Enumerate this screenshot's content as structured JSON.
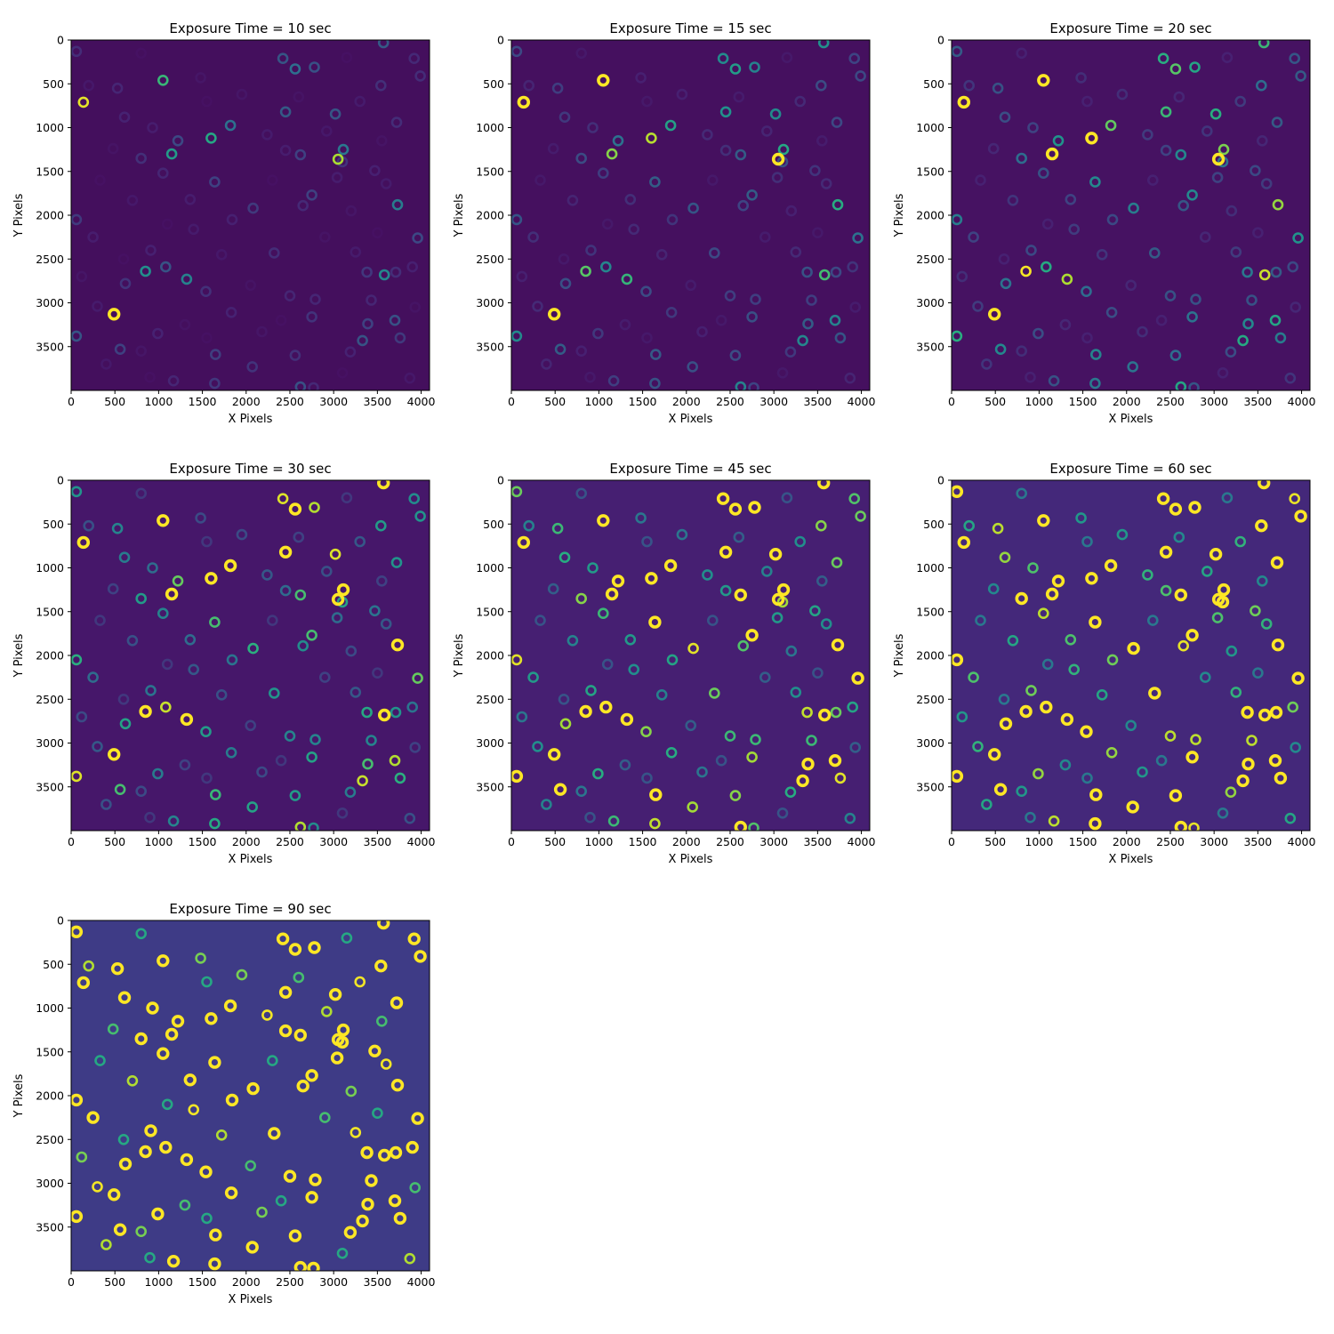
{
  "figure": {
    "colormap": "viridis",
    "background_color": "#ffffff",
    "ring_color_bright": "#fde725"
  },
  "chart_data": [
    {
      "type": "heatmap",
      "title": "Exposure Time = 10 sec",
      "exposure_sec": 10,
      "xlabel": "X Pixels",
      "ylabel": "Y Pixels",
      "xlim": [
        0,
        4096
      ],
      "ylim": [
        4000,
        0
      ],
      "xticks": [
        0,
        500,
        1000,
        1500,
        2000,
        2500,
        3000,
        3500,
        4000
      ],
      "yticks": [
        0,
        500,
        1000,
        1500,
        2000,
        2500,
        3000,
        3500
      ],
      "xtick_labels": [
        "0",
        "500",
        "1000",
        "1500",
        "2000",
        "2500",
        "3000",
        "3500",
        "4000"
      ],
      "ytick_labels": [
        "0",
        "500",
        "1000",
        "1500",
        "2000",
        "2500",
        "3000",
        "3500"
      ],
      "background_color": "#440f5d"
    },
    {
      "type": "heatmap",
      "title": "Exposure Time = 15 sec",
      "exposure_sec": 15,
      "xlabel": "X Pixels",
      "ylabel": "Y Pixels",
      "xlim": [
        0,
        4096
      ],
      "ylim": [
        4000,
        0
      ],
      "xticks": [
        0,
        500,
        1000,
        1500,
        2000,
        2500,
        3000,
        3500,
        4000
      ],
      "yticks": [
        0,
        500,
        1000,
        1500,
        2000,
        2500,
        3000,
        3500
      ],
      "xtick_labels": [
        "0",
        "500",
        "1000",
        "1500",
        "2000",
        "2500",
        "3000",
        "3500",
        "4000"
      ],
      "ytick_labels": [
        "0",
        "500",
        "1000",
        "1500",
        "2000",
        "2500",
        "3000",
        "3500"
      ],
      "background_color": "#45105f"
    },
    {
      "type": "heatmap",
      "title": "Exposure Time = 20 sec",
      "exposure_sec": 20,
      "xlabel": "X Pixels",
      "ylabel": "Y Pixels",
      "xlim": [
        0,
        4096
      ],
      "ylim": [
        4000,
        0
      ],
      "xticks": [
        0,
        500,
        1000,
        1500,
        2000,
        2500,
        3000,
        3500,
        4000
      ],
      "yticks": [
        0,
        500,
        1000,
        1500,
        2000,
        2500,
        3000,
        3500
      ],
      "xtick_labels": [
        "0",
        "500",
        "1000",
        "1500",
        "2000",
        "2500",
        "3000",
        "3500",
        "4000"
      ],
      "ytick_labels": [
        "0",
        "500",
        "1000",
        "1500",
        "2000",
        "2500",
        "3000",
        "3500"
      ],
      "background_color": "#461262"
    },
    {
      "type": "heatmap",
      "title": "Exposure Time = 30 sec",
      "exposure_sec": 30,
      "xlabel": "X Pixels",
      "ylabel": "Y Pixels",
      "xlim": [
        0,
        4096
      ],
      "ylim": [
        4000,
        0
      ],
      "xticks": [
        0,
        500,
        1000,
        1500,
        2000,
        2500,
        3000,
        3500,
        4000
      ],
      "yticks": [
        0,
        500,
        1000,
        1500,
        2000,
        2500,
        3000,
        3500
      ],
      "xtick_labels": [
        "0",
        "500",
        "1000",
        "1500",
        "2000",
        "2500",
        "3000",
        "3500",
        "4000"
      ],
      "ytick_labels": [
        "0",
        "500",
        "1000",
        "1500",
        "2000",
        "2500",
        "3000",
        "3500"
      ],
      "background_color": "#46176a"
    },
    {
      "type": "heatmap",
      "title": "Exposure Time = 45 sec",
      "exposure_sec": 45,
      "xlabel": "X Pixels",
      "ylabel": "Y Pixels",
      "xlim": [
        0,
        4096
      ],
      "ylim": [
        4000,
        0
      ],
      "xticks": [
        0,
        500,
        1000,
        1500,
        2000,
        2500,
        3000,
        3500,
        4000
      ],
      "yticks": [
        0,
        500,
        1000,
        1500,
        2000,
        2500,
        3000,
        3500
      ],
      "xtick_labels": [
        "0",
        "500",
        "1000",
        "1500",
        "2000",
        "2500",
        "3000",
        "3500",
        "4000"
      ],
      "ytick_labels": [
        "0",
        "500",
        "1000",
        "1500",
        "2000",
        "2500",
        "3000",
        "3500"
      ],
      "background_color": "#461f72"
    },
    {
      "type": "heatmap",
      "title": "Exposure Time = 60 sec",
      "exposure_sec": 60,
      "xlabel": "X Pixels",
      "ylabel": "Y Pixels",
      "xlim": [
        0,
        4096
      ],
      "ylim": [
        4000,
        0
      ],
      "xticks": [
        0,
        500,
        1000,
        1500,
        2000,
        2500,
        3000,
        3500,
        4000
      ],
      "yticks": [
        0,
        500,
        1000,
        1500,
        2000,
        2500,
        3000,
        3500
      ],
      "xtick_labels": [
        "0",
        "500",
        "1000",
        "1500",
        "2000",
        "2500",
        "3000",
        "3500",
        "4000"
      ],
      "ytick_labels": [
        "0",
        "500",
        "1000",
        "1500",
        "2000",
        "2500",
        "3000",
        "3500"
      ],
      "background_color": "#44287a"
    },
    {
      "type": "heatmap",
      "title": "Exposure Time = 90 sec",
      "exposure_sec": 90,
      "xlabel": "X Pixels",
      "ylabel": "Y Pixels",
      "xlim": [
        0,
        4096
      ],
      "ylim": [
        4000,
        0
      ],
      "xticks": [
        0,
        500,
        1000,
        1500,
        2000,
        2500,
        3000,
        3500,
        4000
      ],
      "yticks": [
        0,
        500,
        1000,
        1500,
        2000,
        2500,
        3000,
        3500
      ],
      "xtick_labels": [
        "0",
        "500",
        "1000",
        "1500",
        "2000",
        "2500",
        "3000",
        "3500",
        "4000"
      ],
      "ytick_labels": [
        "0",
        "500",
        "1000",
        "1500",
        "2000",
        "2500",
        "3000",
        "3500"
      ],
      "background_color": "#3e3b86"
    }
  ],
  "ring_sources": [
    {
      "x": 140,
      "y": 710,
      "b": 0.9
    },
    {
      "x": 1050,
      "y": 460,
      "b": 0.62
    },
    {
      "x": 490,
      "y": 3130,
      "b": 1.0
    },
    {
      "x": 3050,
      "y": 1360,
      "b": 0.82
    },
    {
      "x": 1600,
      "y": 1120,
      "b": 0.55
    },
    {
      "x": 1150,
      "y": 1300,
      "b": 0.5
    },
    {
      "x": 850,
      "y": 2640,
      "b": 0.45
    },
    {
      "x": 3580,
      "y": 2680,
      "b": 0.42
    },
    {
      "x": 3730,
      "y": 1880,
      "b": 0.38
    },
    {
      "x": 1320,
      "y": 2730,
      "b": 0.4
    },
    {
      "x": 1820,
      "y": 975,
      "b": 0.34
    },
    {
      "x": 2560,
      "y": 330,
      "b": 0.33
    },
    {
      "x": 3110,
      "y": 1250,
      "b": 0.36
    },
    {
      "x": 2450,
      "y": 820,
      "b": 0.3
    },
    {
      "x": 2420,
      "y": 210,
      "b": 0.28
    },
    {
      "x": 2780,
      "y": 310,
      "b": 0.26
    },
    {
      "x": 3020,
      "y": 845,
      "b": 0.28
    },
    {
      "x": 3570,
      "y": 30,
      "b": 0.3
    },
    {
      "x": 1080,
      "y": 2590,
      "b": 0.27
    },
    {
      "x": 60,
      "y": 3380,
      "b": 0.28
    },
    {
      "x": 3700,
      "y": 3200,
      "b": 0.26
    },
    {
      "x": 3330,
      "y": 3430,
      "b": 0.27
    },
    {
      "x": 3960,
      "y": 2260,
      "b": 0.22
    },
    {
      "x": 2620,
      "y": 3960,
      "b": 0.26
    },
    {
      "x": 1640,
      "y": 1620,
      "b": 0.2
    },
    {
      "x": 1220,
      "y": 1150,
      "b": 0.22
    },
    {
      "x": 2750,
      "y": 1770,
      "b": 0.2
    },
    {
      "x": 2620,
      "y": 1310,
      "b": 0.2
    },
    {
      "x": 60,
      "y": 2050,
      "b": 0.18
    },
    {
      "x": 2080,
      "y": 1920,
      "b": 0.18
    },
    {
      "x": 560,
      "y": 3530,
      "b": 0.2
    },
    {
      "x": 3390,
      "y": 3240,
      "b": 0.2
    },
    {
      "x": 1650,
      "y": 3590,
      "b": 0.19
    },
    {
      "x": 3760,
      "y": 3400,
      "b": 0.18
    },
    {
      "x": 3380,
      "y": 2650,
      "b": 0.17
    },
    {
      "x": 620,
      "y": 2780,
      "b": 0.16
    },
    {
      "x": 1640,
      "y": 3920,
      "b": 0.17
    },
    {
      "x": 2070,
      "y": 3730,
      "b": 0.16
    },
    {
      "x": 2750,
      "y": 3160,
      "b": 0.16
    },
    {
      "x": 1540,
      "y": 2870,
      "b": 0.15
    },
    {
      "x": 800,
      "y": 1350,
      "b": 0.15
    },
    {
      "x": 3720,
      "y": 940,
      "b": 0.14
    },
    {
      "x": 3540,
      "y": 520,
      "b": 0.15
    },
    {
      "x": 3100,
      "y": 1390,
      "b": 0.16
    },
    {
      "x": 3710,
      "y": 2650,
      "b": 0.14
    },
    {
      "x": 2560,
      "y": 3600,
      "b": 0.15
    },
    {
      "x": 3920,
      "y": 210,
      "b": 0.13
    },
    {
      "x": 3990,
      "y": 410,
      "b": 0.14
    },
    {
      "x": 60,
      "y": 130,
      "b": 0.14
    },
    {
      "x": 530,
      "y": 550,
      "b": 0.12
    },
    {
      "x": 1050,
      "y": 1520,
      "b": 0.12
    },
    {
      "x": 2320,
      "y": 2430,
      "b": 0.14
    },
    {
      "x": 2790,
      "y": 2960,
      "b": 0.12
    },
    {
      "x": 2500,
      "y": 2920,
      "b": 0.12
    },
    {
      "x": 2650,
      "y": 1890,
      "b": 0.13
    },
    {
      "x": 1170,
      "y": 3890,
      "b": 0.12
    },
    {
      "x": 2770,
      "y": 3970,
      "b": 0.13
    },
    {
      "x": 3430,
      "y": 2970,
      "b": 0.12
    },
    {
      "x": 1830,
      "y": 3110,
      "b": 0.11
    },
    {
      "x": 3190,
      "y": 3560,
      "b": 0.11
    },
    {
      "x": 610,
      "y": 880,
      "b": 0.11
    },
    {
      "x": 990,
      "y": 3350,
      "b": 0.11
    },
    {
      "x": 910,
      "y": 2400,
      "b": 0.1
    },
    {
      "x": 1840,
      "y": 2050,
      "b": 0.1
    },
    {
      "x": 3470,
      "y": 1490,
      "b": 0.1
    },
    {
      "x": 3900,
      "y": 2590,
      "b": 0.1
    },
    {
      "x": 3040,
      "y": 1570,
      "b": 0.09
    },
    {
      "x": 2450,
      "y": 1260,
      "b": 0.09
    },
    {
      "x": 1360,
      "y": 1820,
      "b": 0.09
    },
    {
      "x": 930,
      "y": 1000,
      "b": 0.09
    },
    {
      "x": 250,
      "y": 2250,
      "b": 0.09
    },
    {
      "x": 3250,
      "y": 2420,
      "b": 0.08
    },
    {
      "x": 1400,
      "y": 2160,
      "b": 0.08
    },
    {
      "x": 2240,
      "y": 1080,
      "b": 0.08
    },
    {
      "x": 3300,
      "y": 700,
      "b": 0.08
    },
    {
      "x": 3600,
      "y": 1640,
      "b": 0.08
    },
    {
      "x": 300,
      "y": 3040,
      "b": 0.08
    },
    {
      "x": 700,
      "y": 1830,
      "b": 0.07
    },
    {
      "x": 2920,
      "y": 1040,
      "b": 0.07
    },
    {
      "x": 1720,
      "y": 2450,
      "b": 0.07
    },
    {
      "x": 200,
      "y": 520,
      "b": 0.07
    },
    {
      "x": 3870,
      "y": 3860,
      "b": 0.07
    },
    {
      "x": 400,
      "y": 3700,
      "b": 0.07
    },
    {
      "x": 2180,
      "y": 3330,
      "b": 0.06
    },
    {
      "x": 1950,
      "y": 620,
      "b": 0.06
    },
    {
      "x": 3200,
      "y": 1950,
      "b": 0.06
    },
    {
      "x": 120,
      "y": 2700,
      "b": 0.06
    },
    {
      "x": 800,
      "y": 3550,
      "b": 0.06
    },
    {
      "x": 1480,
      "y": 430,
      "b": 0.06
    },
    {
      "x": 2900,
      "y": 2250,
      "b": 0.05
    },
    {
      "x": 3550,
      "y": 1150,
      "b": 0.05
    },
    {
      "x": 480,
      "y": 1240,
      "b": 0.05
    },
    {
      "x": 2600,
      "y": 650,
      "b": 0.05
    },
    {
      "x": 1300,
      "y": 3250,
      "b": 0.05
    },
    {
      "x": 3930,
      "y": 3050,
      "b": 0.05
    },
    {
      "x": 2050,
      "y": 2800,
      "b": 0.05
    },
    {
      "x": 800,
      "y": 150,
      "b": 0.04
    },
    {
      "x": 1550,
      "y": 700,
      "b": 0.04
    },
    {
      "x": 3150,
      "y": 200,
      "b": 0.04
    },
    {
      "x": 330,
      "y": 1600,
      "b": 0.04
    },
    {
      "x": 2300,
      "y": 1600,
      "b": 0.04
    },
    {
      "x": 1100,
      "y": 2100,
      "b": 0.04
    },
    {
      "x": 3500,
      "y": 2200,
      "b": 0.04
    },
    {
      "x": 600,
      "y": 2500,
      "b": 0.04
    },
    {
      "x": 2400,
      "y": 3200,
      "b": 0.04
    },
    {
      "x": 1550,
      "y": 3400,
      "b": 0.04
    },
    {
      "x": 3100,
      "y": 3800,
      "b": 0.04
    },
    {
      "x": 900,
      "y": 3850,
      "b": 0.04
    }
  ]
}
